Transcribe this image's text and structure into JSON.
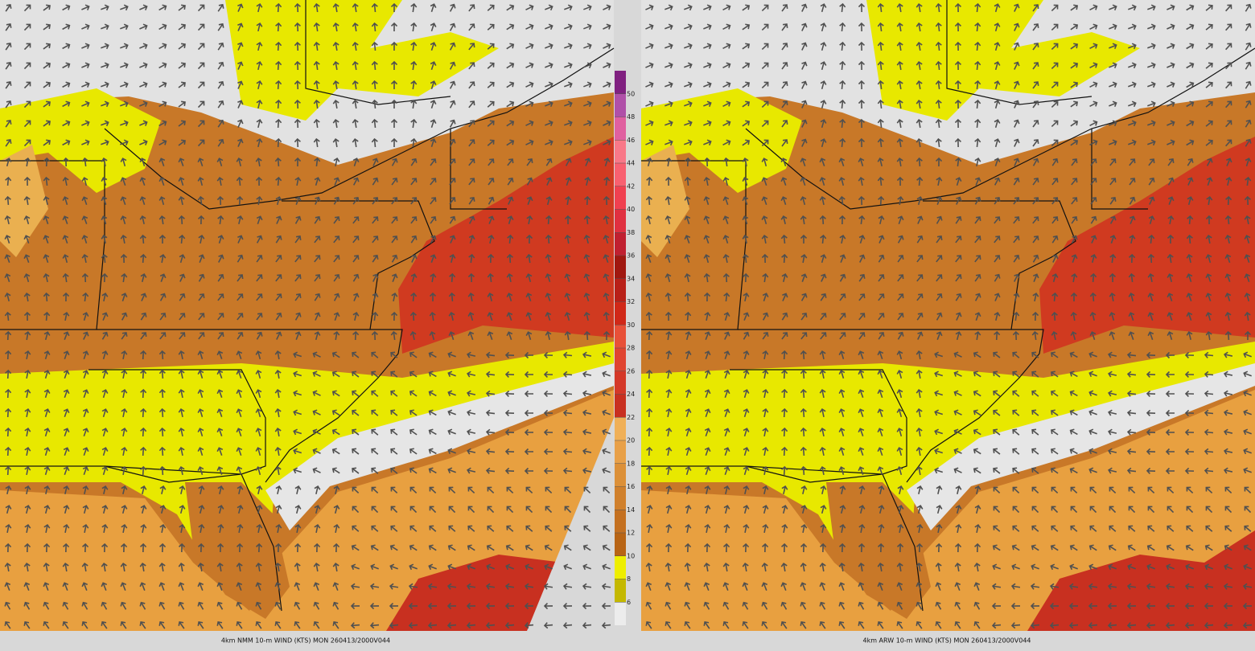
{
  "colorbar": {
    "ticks": [
      6,
      8,
      10,
      12,
      14,
      16,
      18,
      20,
      22,
      24,
      26,
      28,
      30,
      32,
      34,
      36,
      38,
      40,
      42,
      44,
      46,
      48,
      50
    ],
    "colors": [
      "#ececec",
      "#c4b800",
      "#eeee00",
      "#b86414",
      "#c47020",
      "#d0802c",
      "#dc9038",
      "#e8a048",
      "#f0b058",
      "#c83020",
      "#d43828",
      "#e04430",
      "#e85038",
      "#d02818",
      "#b82018",
      "#a01810",
      "#c02030",
      "#e03040",
      "#f04050",
      "#f86070",
      "#f87888",
      "#e060a0",
      "#b050a8",
      "#802080"
    ]
  },
  "panels": [
    {
      "caption": "4km NMM 10-m WIND (KTS) MON 260413/2000V044"
    },
    {
      "caption": "4km ARW 10-m WIND (KTS) MON 260413/2000V044"
    }
  ]
}
